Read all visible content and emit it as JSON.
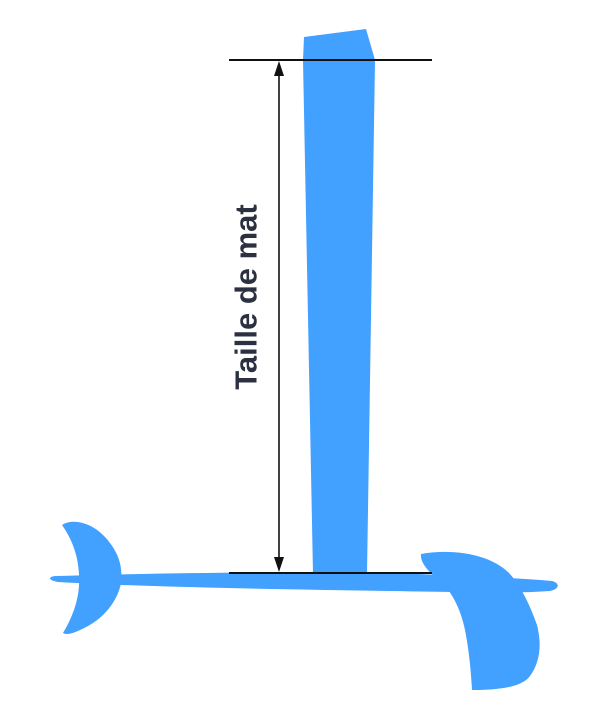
{
  "diagram": {
    "dimension_label": "Taille de mat",
    "colors": {
      "foil": "#42a0ff",
      "lines": "#111111",
      "label": "#2b3140"
    }
  }
}
